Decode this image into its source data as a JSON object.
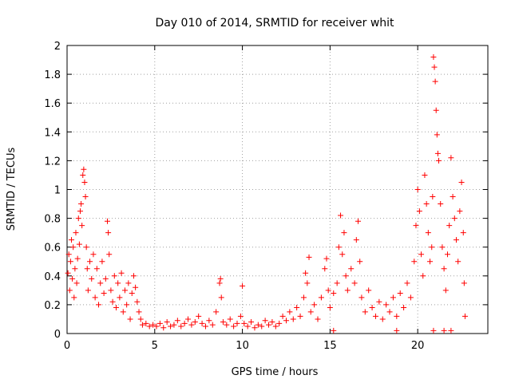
{
  "chart_data": {
    "type": "scatter",
    "title": "Day 010 of 2014, SRMTID for receiver whit",
    "xlabel": "GPS time / hours",
    "ylabel": "SRMTID / TECUs",
    "xlim": [
      0,
      24
    ],
    "ylim": [
      0,
      2
    ],
    "xticks": [
      0,
      5,
      10,
      15,
      20
    ],
    "xtick_labels": [
      "0",
      "5",
      "10",
      "15",
      "20"
    ],
    "yticks": [
      0,
      0.2,
      0.4,
      0.6,
      0.8,
      1,
      1.2,
      1.4,
      1.6,
      1.8,
      2
    ],
    "ytick_labels": [
      "0",
      "0.2",
      "0.4",
      "0.6",
      "0.8",
      "1",
      "1.2",
      "1.4",
      "1.6",
      "1.8",
      "2"
    ],
    "grid": true,
    "marker": "+",
    "color": "#ff0000",
    "series": [
      {
        "name": "SRMTID",
        "points": [
          [
            0.05,
            0.42
          ],
          [
            0.1,
            0.55
          ],
          [
            0.15,
            0.3
          ],
          [
            0.2,
            0.5
          ],
          [
            0.25,
            0.65
          ],
          [
            0.3,
            0.38
          ],
          [
            0.35,
            0.6
          ],
          [
            0.4,
            0.25
          ],
          [
            0.45,
            0.45
          ],
          [
            0.5,
            0.7
          ],
          [
            0.55,
            0.35
          ],
          [
            0.6,
            0.52
          ],
          [
            0.65,
            0.8
          ],
          [
            0.7,
            0.62
          ],
          [
            0.75,
            0.85
          ],
          [
            0.8,
            0.9
          ],
          [
            0.85,
            0.75
          ],
          [
            0.9,
            1.1
          ],
          [
            0.95,
            1.14
          ],
          [
            1.0,
            1.05
          ],
          [
            1.05,
            0.95
          ],
          [
            1.1,
            0.6
          ],
          [
            1.15,
            0.45
          ],
          [
            1.2,
            0.3
          ],
          [
            1.3,
            0.5
          ],
          [
            1.4,
            0.38
          ],
          [
            1.5,
            0.55
          ],
          [
            1.6,
            0.25
          ],
          [
            1.7,
            0.45
          ],
          [
            1.8,
            0.2
          ],
          [
            1.9,
            0.35
          ],
          [
            2.0,
            0.5
          ],
          [
            2.1,
            0.28
          ],
          [
            2.2,
            0.38
          ],
          [
            2.3,
            0.78
          ],
          [
            2.35,
            0.7
          ],
          [
            2.4,
            0.55
          ],
          [
            2.5,
            0.3
          ],
          [
            2.6,
            0.22
          ],
          [
            2.7,
            0.4
          ],
          [
            2.8,
            0.18
          ],
          [
            2.9,
            0.35
          ],
          [
            3.0,
            0.25
          ],
          [
            3.1,
            0.42
          ],
          [
            3.2,
            0.15
          ],
          [
            3.3,
            0.3
          ],
          [
            3.4,
            0.2
          ],
          [
            3.5,
            0.35
          ],
          [
            3.6,
            0.1
          ],
          [
            3.7,
            0.28
          ],
          [
            3.8,
            0.4
          ],
          [
            3.9,
            0.32
          ],
          [
            4.0,
            0.22
          ],
          [
            4.1,
            0.15
          ],
          [
            4.2,
            0.1
          ],
          [
            4.3,
            0.06
          ],
          [
            4.5,
            0.07
          ],
          [
            4.7,
            0.05
          ],
          [
            4.9,
            0.06
          ],
          [
            5.1,
            0.05
          ],
          [
            5.3,
            0.07
          ],
          [
            5.5,
            0.04
          ],
          [
            5.7,
            0.08
          ],
          [
            5.9,
            0.05
          ],
          [
            6.1,
            0.06
          ],
          [
            6.3,
            0.09
          ],
          [
            6.5,
            0.05
          ],
          [
            6.7,
            0.07
          ],
          [
            6.9,
            0.1
          ],
          [
            7.1,
            0.06
          ],
          [
            7.3,
            0.08
          ],
          [
            7.5,
            0.12
          ],
          [
            7.7,
            0.07
          ],
          [
            7.9,
            0.05
          ],
          [
            8.1,
            0.09
          ],
          [
            8.3,
            0.06
          ],
          [
            8.5,
            0.15
          ],
          [
            8.7,
            0.35
          ],
          [
            8.75,
            0.38
          ],
          [
            8.8,
            0.25
          ],
          [
            8.9,
            0.08
          ],
          [
            9.1,
            0.06
          ],
          [
            9.3,
            0.1
          ],
          [
            9.5,
            0.05
          ],
          [
            9.7,
            0.07
          ],
          [
            9.9,
            0.12
          ],
          [
            10.0,
            0.33
          ],
          [
            10.1,
            0.07
          ],
          [
            10.3,
            0.05
          ],
          [
            10.5,
            0.08
          ],
          [
            10.7,
            0.04
          ],
          [
            10.9,
            0.06
          ],
          [
            11.1,
            0.05
          ],
          [
            11.3,
            0.09
          ],
          [
            11.5,
            0.06
          ],
          [
            11.7,
            0.08
          ],
          [
            11.9,
            0.05
          ],
          [
            12.1,
            0.07
          ],
          [
            12.3,
            0.12
          ],
          [
            12.5,
            0.09
          ],
          [
            12.7,
            0.15
          ],
          [
            12.9,
            0.1
          ],
          [
            13.1,
            0.18
          ],
          [
            13.3,
            0.12
          ],
          [
            13.5,
            0.25
          ],
          [
            13.6,
            0.42
          ],
          [
            13.7,
            0.35
          ],
          [
            13.8,
            0.53
          ],
          [
            13.9,
            0.15
          ],
          [
            14.1,
            0.2
          ],
          [
            14.3,
            0.1
          ],
          [
            14.5,
            0.25
          ],
          [
            14.7,
            0.45
          ],
          [
            14.8,
            0.52
          ],
          [
            14.9,
            0.3
          ],
          [
            15.0,
            0.18
          ],
          [
            15.2,
            0.28
          ],
          [
            15.4,
            0.35
          ],
          [
            15.5,
            0.6
          ],
          [
            15.6,
            0.82
          ],
          [
            15.7,
            0.55
          ],
          [
            15.8,
            0.7
          ],
          [
            15.9,
            0.4
          ],
          [
            16.0,
            0.3
          ],
          [
            16.2,
            0.45
          ],
          [
            16.4,
            0.35
          ],
          [
            16.5,
            0.65
          ],
          [
            16.6,
            0.78
          ],
          [
            16.7,
            0.5
          ],
          [
            16.8,
            0.25
          ],
          [
            17.0,
            0.15
          ],
          [
            17.2,
            0.3
          ],
          [
            17.4,
            0.18
          ],
          [
            17.6,
            0.12
          ],
          [
            17.8,
            0.22
          ],
          [
            18.0,
            0.1
          ],
          [
            18.2,
            0.2
          ],
          [
            18.4,
            0.15
          ],
          [
            18.6,
            0.25
          ],
          [
            18.8,
            0.12
          ],
          [
            19.0,
            0.28
          ],
          [
            19.2,
            0.18
          ],
          [
            19.4,
            0.35
          ],
          [
            19.6,
            0.25
          ],
          [
            19.8,
            0.5
          ],
          [
            19.9,
            0.75
          ],
          [
            20.0,
            1.0
          ],
          [
            20.1,
            0.85
          ],
          [
            20.2,
            0.55
          ],
          [
            20.3,
            0.4
          ],
          [
            20.4,
            1.1
          ],
          [
            20.5,
            0.9
          ],
          [
            20.6,
            0.7
          ],
          [
            20.7,
            0.5
          ],
          [
            20.8,
            0.6
          ],
          [
            20.85,
            0.95
          ],
          [
            20.9,
            1.92
          ],
          [
            20.95,
            1.85
          ],
          [
            21.0,
            1.75
          ],
          [
            21.05,
            1.55
          ],
          [
            21.1,
            1.38
          ],
          [
            21.15,
            1.25
          ],
          [
            21.2,
            1.2
          ],
          [
            21.3,
            0.9
          ],
          [
            21.4,
            0.6
          ],
          [
            21.5,
            0.45
          ],
          [
            21.6,
            0.3
          ],
          [
            21.7,
            0.55
          ],
          [
            21.8,
            0.75
          ],
          [
            21.9,
            1.22
          ],
          [
            22.0,
            0.95
          ],
          [
            22.1,
            0.8
          ],
          [
            22.2,
            0.65
          ],
          [
            22.3,
            0.5
          ],
          [
            22.4,
            0.85
          ],
          [
            22.5,
            1.05
          ],
          [
            22.6,
            0.7
          ],
          [
            22.65,
            0.35
          ],
          [
            22.7,
            0.12
          ],
          [
            20.9,
            0.02
          ],
          [
            21.5,
            0.02
          ],
          [
            21.9,
            0.02
          ],
          [
            18.8,
            0.02
          ],
          [
            15.2,
            0.02
          ]
        ]
      }
    ]
  }
}
